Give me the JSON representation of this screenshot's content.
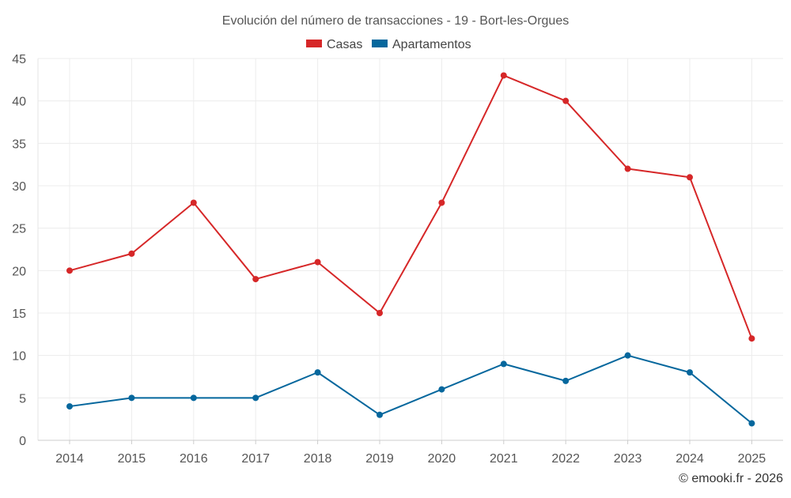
{
  "chart_data": {
    "type": "line",
    "title": "Evolución del número de transacciones - 19 - Bort-les-Orgues",
    "x": [
      "2014",
      "2015",
      "2016",
      "2017",
      "2018",
      "2019",
      "2020",
      "2021",
      "2022",
      "2023",
      "2024",
      "2025"
    ],
    "series": [
      {
        "name": "Casas",
        "color": "#d62728",
        "values": [
          20,
          22,
          28,
          19,
          21,
          15,
          28,
          43,
          40,
          32,
          31,
          12
        ]
      },
      {
        "name": "Apartamentos",
        "color": "#05679d",
        "values": [
          4,
          5,
          5,
          5,
          8,
          3,
          6,
          9,
          7,
          10,
          8,
          2
        ]
      }
    ],
    "ylim": [
      0,
      45
    ],
    "yticks": [
      "0",
      "5",
      "10",
      "15",
      "20",
      "25",
      "30",
      "35",
      "40",
      "45"
    ],
    "xlabel": "",
    "ylabel": "",
    "grid": true,
    "legend_position": "top-center"
  },
  "credit": "© emooki.fr - 2026"
}
